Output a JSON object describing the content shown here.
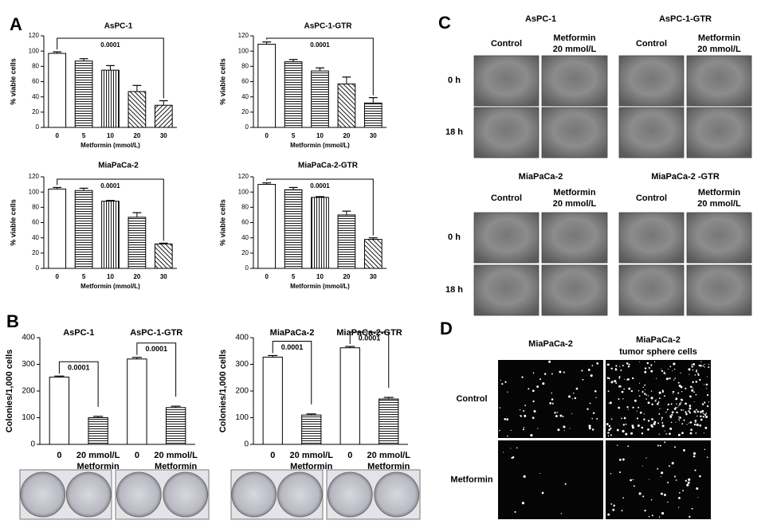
{
  "panel_a_label": "A",
  "panel_b_label": "B",
  "chart_data": [
    {
      "type": "bar",
      "title": "AsPC-1",
      "categories": [
        "0",
        "5",
        "10",
        "20",
        "30"
      ],
      "values": [
        97,
        87,
        75,
        47,
        29
      ],
      "errors": [
        2,
        3,
        6,
        8,
        6
      ],
      "patterns": [
        "none",
        "horizontal",
        "vertical",
        "diagonal",
        "diagonal-reverse"
      ],
      "ylabel": "% viable cells",
      "xlabel": "Metformin (mmol/L)",
      "annotation": "0.0001",
      "ylim": [
        0,
        120
      ],
      "yticks": [
        0,
        20,
        40,
        60,
        80,
        100,
        120
      ]
    },
    {
      "type": "bar",
      "title": "AsPC-1-GTR",
      "categories": [
        "0",
        "5",
        "10",
        "20",
        "30"
      ],
      "values": [
        109,
        86,
        74,
        57,
        32
      ],
      "errors": [
        3,
        3,
        4,
        9,
        7
      ],
      "patterns": [
        "none",
        "horizontal",
        "horizontal",
        "diagonal",
        "horizontal"
      ],
      "ylabel": "% viable cells",
      "xlabel": "Metformin (mmol/L)",
      "annotation": "0.0001",
      "ylim": [
        0,
        120
      ],
      "yticks": [
        0,
        20,
        40,
        60,
        80,
        100,
        120
      ]
    },
    {
      "type": "bar",
      "title": "MiaPaCa-2",
      "categories": [
        "0",
        "5",
        "10",
        "20",
        "30"
      ],
      "values": [
        104,
        102,
        88,
        67,
        32
      ],
      "errors": [
        2,
        3,
        1,
        6,
        1
      ],
      "patterns": [
        "none",
        "horizontal",
        "vertical",
        "horizontal",
        "diagonal"
      ],
      "ylabel": "% viable cells",
      "xlabel": "Metformin (mmol/L)",
      "annotation": "0.0001",
      "ylim": [
        0,
        120
      ],
      "yticks": [
        0,
        20,
        40,
        60,
        80,
        100,
        120
      ]
    },
    {
      "type": "bar",
      "title": "MiaPaCa-2-GTR",
      "categories": [
        "0",
        "5",
        "10",
        "20",
        "30"
      ],
      "values": [
        110,
        103,
        93,
        70,
        38
      ],
      "errors": [
        2,
        3,
        1,
        5,
        2
      ],
      "patterns": [
        "none",
        "horizontal",
        "vertical",
        "horizontal",
        "diagonal"
      ],
      "ylabel": "% viable cells",
      "xlabel": "Metformin (mmol/L)",
      "annotation": "0.0001",
      "ylim": [
        0,
        120
      ],
      "yticks": [
        0,
        20,
        40,
        60,
        80,
        100,
        120
      ]
    },
    {
      "type": "bar",
      "groups": [
        "AsPC-1",
        "AsPC-1-GTR"
      ],
      "categories": [
        "0",
        "20 mmol/L",
        "0",
        "20 mmol/L"
      ],
      "category_sublabels": [
        null,
        "Metformin",
        null,
        "Metformin"
      ],
      "values": [
        252,
        100,
        320,
        138
      ],
      "errors": [
        4,
        5,
        6,
        5
      ],
      "patterns": [
        "none",
        "horizontal",
        "none",
        "horizontal"
      ],
      "ylabel": "Colonies/1,000 cells",
      "annotations": [
        "0.0001",
        "0.0001"
      ],
      "ylim": [
        0,
        400
      ],
      "yticks": [
        0,
        100,
        200,
        300,
        400
      ]
    },
    {
      "type": "bar",
      "groups": [
        "MiaPaCa-2",
        "MiaPaCa-2-GTR"
      ],
      "categories": [
        "0",
        "20 mmol/L",
        "0",
        "20 mmol/L"
      ],
      "category_sublabels": [
        null,
        "Metformin",
        null,
        "Metformin"
      ],
      "values": [
        327,
        110,
        362,
        170
      ],
      "errors": [
        6,
        4,
        5,
        6
      ],
      "patterns": [
        "none",
        "horizontal",
        "none",
        "horizontal"
      ],
      "ylabel": "Colonies/1,000 cells",
      "annotations": [
        "0.0001",
        "0.0001"
      ],
      "ylim": [
        0,
        400
      ],
      "yticks": [
        0,
        100,
        200,
        300,
        400
      ]
    }
  ],
  "scratch_assay": {
    "label": "C",
    "groups": [
      "AsPC-1",
      "AsPC-1-GTR",
      "MiaPaCa-2",
      "MiaPaCa-2 -GTR"
    ],
    "columns": [
      "Control",
      "Metformin"
    ],
    "column_sublabels": [
      null,
      "20 mmol/L"
    ],
    "rows": [
      "0 h",
      "18 h"
    ]
  },
  "sphere_assay": {
    "label": "D",
    "columns": [
      "MiaPaCa-2",
      "MiaPaCa-2"
    ],
    "column_sublabels": [
      null,
      "tumor sphere cells"
    ],
    "rows": [
      "Control",
      "Metformin"
    ]
  }
}
